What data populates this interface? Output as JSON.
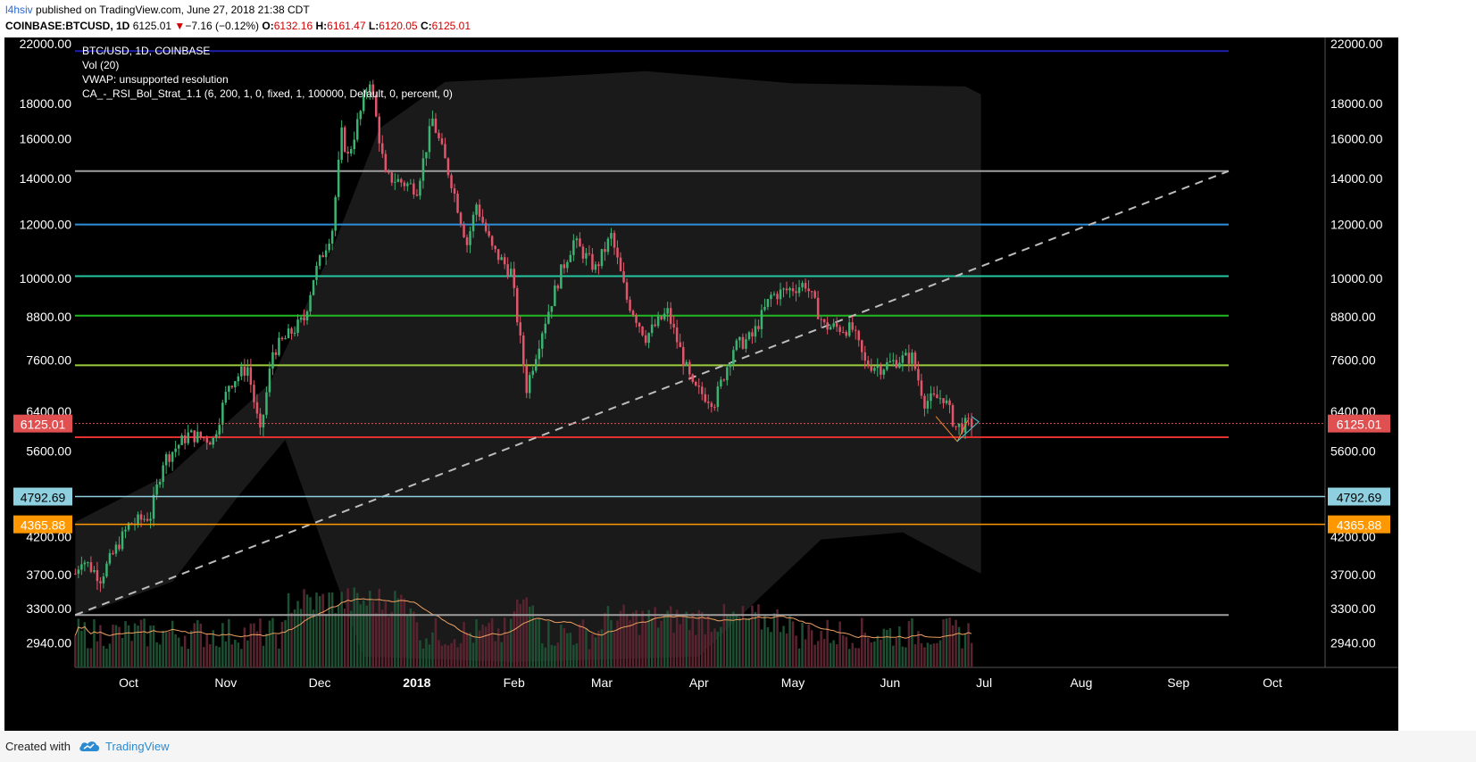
{
  "header": {
    "author": "l4hsiv",
    "publish_text": " published on TradingView.com, June 27, 2018 21:38 CDT",
    "symbol": "COINBASE:BTCUSD, 1D",
    "last": "6125.01",
    "change_arrow": "▼",
    "change": "−7.16 (−0.12%)",
    "o_label": "O:",
    "o_val": "6132.16",
    "h_label": "H:",
    "h_val": "6161.47",
    "l_label": "L:",
    "l_val": "6120.05",
    "c_label": "C:",
    "c_val": "6125.01"
  },
  "footer": {
    "created": "Created with",
    "brand": "TradingView",
    "logo_icon": "tradingview-cloud-icon"
  },
  "colors": {
    "bg": "#000000",
    "up": "#3cb371",
    "down": "#e0556a",
    "grid": "#222222"
  },
  "chart_data": {
    "type": "candlestick",
    "title": "",
    "y_scale": "log",
    "ylim": [
      2700,
      22400
    ],
    "legend": [
      "BTC/USD, 1D, COINBASE",
      "Vol (20)",
      "VWAP: unsupported resolution",
      "CA_-_RSI_Bol_Strat_1.1 (6, 200, 1, 0, fixed, 1, 100000, Default, 0, percent, 0)"
    ],
    "y_ticks": [
      "22000.00",
      "18000.00",
      "16000.00",
      "14000.00",
      "12000.00",
      "10000.00",
      "8800.00",
      "7600.00",
      "6400.00",
      "5600.00",
      "4200.00",
      "3700.00",
      "3300.00",
      "2940.00"
    ],
    "x_ticks": [
      {
        "label": "Oct",
        "date": "2017-10-01"
      },
      {
        "label": "Nov",
        "date": "2017-11-01"
      },
      {
        "label": "Dec",
        "date": "2017-12-01"
      },
      {
        "label": "2018",
        "date": "2018-01-01",
        "bold": true
      },
      {
        "label": "Feb",
        "date": "2018-02-01"
      },
      {
        "label": "Mar",
        "date": "2018-03-01"
      },
      {
        "label": "Apr",
        "date": "2018-04-01"
      },
      {
        "label": "May",
        "date": "2018-05-01"
      },
      {
        "label": "Jun",
        "date": "2018-06-01"
      },
      {
        "label": "Jul",
        "date": "2018-07-01"
      },
      {
        "label": "Aug",
        "date": "2018-08-01"
      },
      {
        "label": "Sep",
        "date": "2018-09-01"
      },
      {
        "label": "Oct",
        "date": "2018-10-01"
      }
    ],
    "price_labels": [
      {
        "text": "6125.01",
        "value": 6125.01,
        "color": "#e05050",
        "dotted": true
      },
      {
        "text": "4792.69",
        "value": 4792.69,
        "color": "#8fd0e0"
      },
      {
        "text": "4365.88",
        "value": 4365.88,
        "color": "#ff9800"
      }
    ],
    "horizontal_lines": [
      {
        "value": 21400,
        "color": "#2020b0"
      },
      {
        "value": 14300,
        "color": "#9e9e9e"
      },
      {
        "value": 11950,
        "color": "#2f8fd8"
      },
      {
        "value": 10050,
        "color": "#26c6a0"
      },
      {
        "value": 8800,
        "color": "#22b822"
      },
      {
        "value": 7450,
        "color": "#9ccc3c"
      },
      {
        "value": 5850,
        "color": "#e03030"
      },
      {
        "value": 3220,
        "color": "#9e9e9e"
      }
    ],
    "trendline": {
      "from": {
        "date": "2017-09-14",
        "value": 3220
      },
      "to": {
        "date": "2018-09-17",
        "value": 14300
      },
      "color": "#bdbdbd",
      "dashed": true
    },
    "anchors": [
      {
        "date": "2017-09-14",
        "value": 3700
      },
      {
        "date": "2017-09-16",
        "value": 3900
      },
      {
        "date": "2017-09-22",
        "value": 3650
      },
      {
        "date": "2017-10-01",
        "value": 4350
      },
      {
        "date": "2017-10-08",
        "value": 4500
      },
      {
        "date": "2017-10-12",
        "value": 5400
      },
      {
        "date": "2017-10-20",
        "value": 5900
      },
      {
        "date": "2017-10-28",
        "value": 5800
      },
      {
        "date": "2017-11-02",
        "value": 7000
      },
      {
        "date": "2017-11-08",
        "value": 7400
      },
      {
        "date": "2017-11-12",
        "value": 5900
      },
      {
        "date": "2017-11-16",
        "value": 7800
      },
      {
        "date": "2017-11-26",
        "value": 8700
      },
      {
        "date": "2017-11-29",
        "value": 10000
      },
      {
        "date": "2017-12-05",
        "value": 11800
      },
      {
        "date": "2017-12-08",
        "value": 16200
      },
      {
        "date": "2017-12-10",
        "value": 15000
      },
      {
        "date": "2017-12-17",
        "value": 19500
      },
      {
        "date": "2017-12-22",
        "value": 14000
      },
      {
        "date": "2017-12-25",
        "value": 13900
      },
      {
        "date": "2018-01-01",
        "value": 13500
      },
      {
        "date": "2018-01-06",
        "value": 17000
      },
      {
        "date": "2018-01-12",
        "value": 13800
      },
      {
        "date": "2018-01-17",
        "value": 11200
      },
      {
        "date": "2018-01-20",
        "value": 12800
      },
      {
        "date": "2018-01-25",
        "value": 11000
      },
      {
        "date": "2018-01-31",
        "value": 10200
      },
      {
        "date": "2018-02-05",
        "value": 6900
      },
      {
        "date": "2018-02-10",
        "value": 8400
      },
      {
        "date": "2018-02-16",
        "value": 10200
      },
      {
        "date": "2018-02-20",
        "value": 11300
      },
      {
        "date": "2018-02-27",
        "value": 10300
      },
      {
        "date": "2018-03-04",
        "value": 11500
      },
      {
        "date": "2018-03-09",
        "value": 9300
      },
      {
        "date": "2018-03-15",
        "value": 8200
      },
      {
        "date": "2018-03-19",
        "value": 8600
      },
      {
        "date": "2018-03-22",
        "value": 8900
      },
      {
        "date": "2018-03-30",
        "value": 6900
      },
      {
        "date": "2018-04-06",
        "value": 6600
      },
      {
        "date": "2018-04-12",
        "value": 7900
      },
      {
        "date": "2018-04-18",
        "value": 8200
      },
      {
        "date": "2018-04-24",
        "value": 9400
      },
      {
        "date": "2018-05-05",
        "value": 9800
      },
      {
        "date": "2018-05-11",
        "value": 8500
      },
      {
        "date": "2018-05-20",
        "value": 8400
      },
      {
        "date": "2018-05-24",
        "value": 7500
      },
      {
        "date": "2018-05-29",
        "value": 7400
      },
      {
        "date": "2018-06-04",
        "value": 7600
      },
      {
        "date": "2018-06-08",
        "value": 7650
      },
      {
        "date": "2018-06-12",
        "value": 6600
      },
      {
        "date": "2018-06-18",
        "value": 6700
      },
      {
        "date": "2018-06-22",
        "value": 6050
      },
      {
        "date": "2018-06-27",
        "value": 6125
      }
    ]
  }
}
